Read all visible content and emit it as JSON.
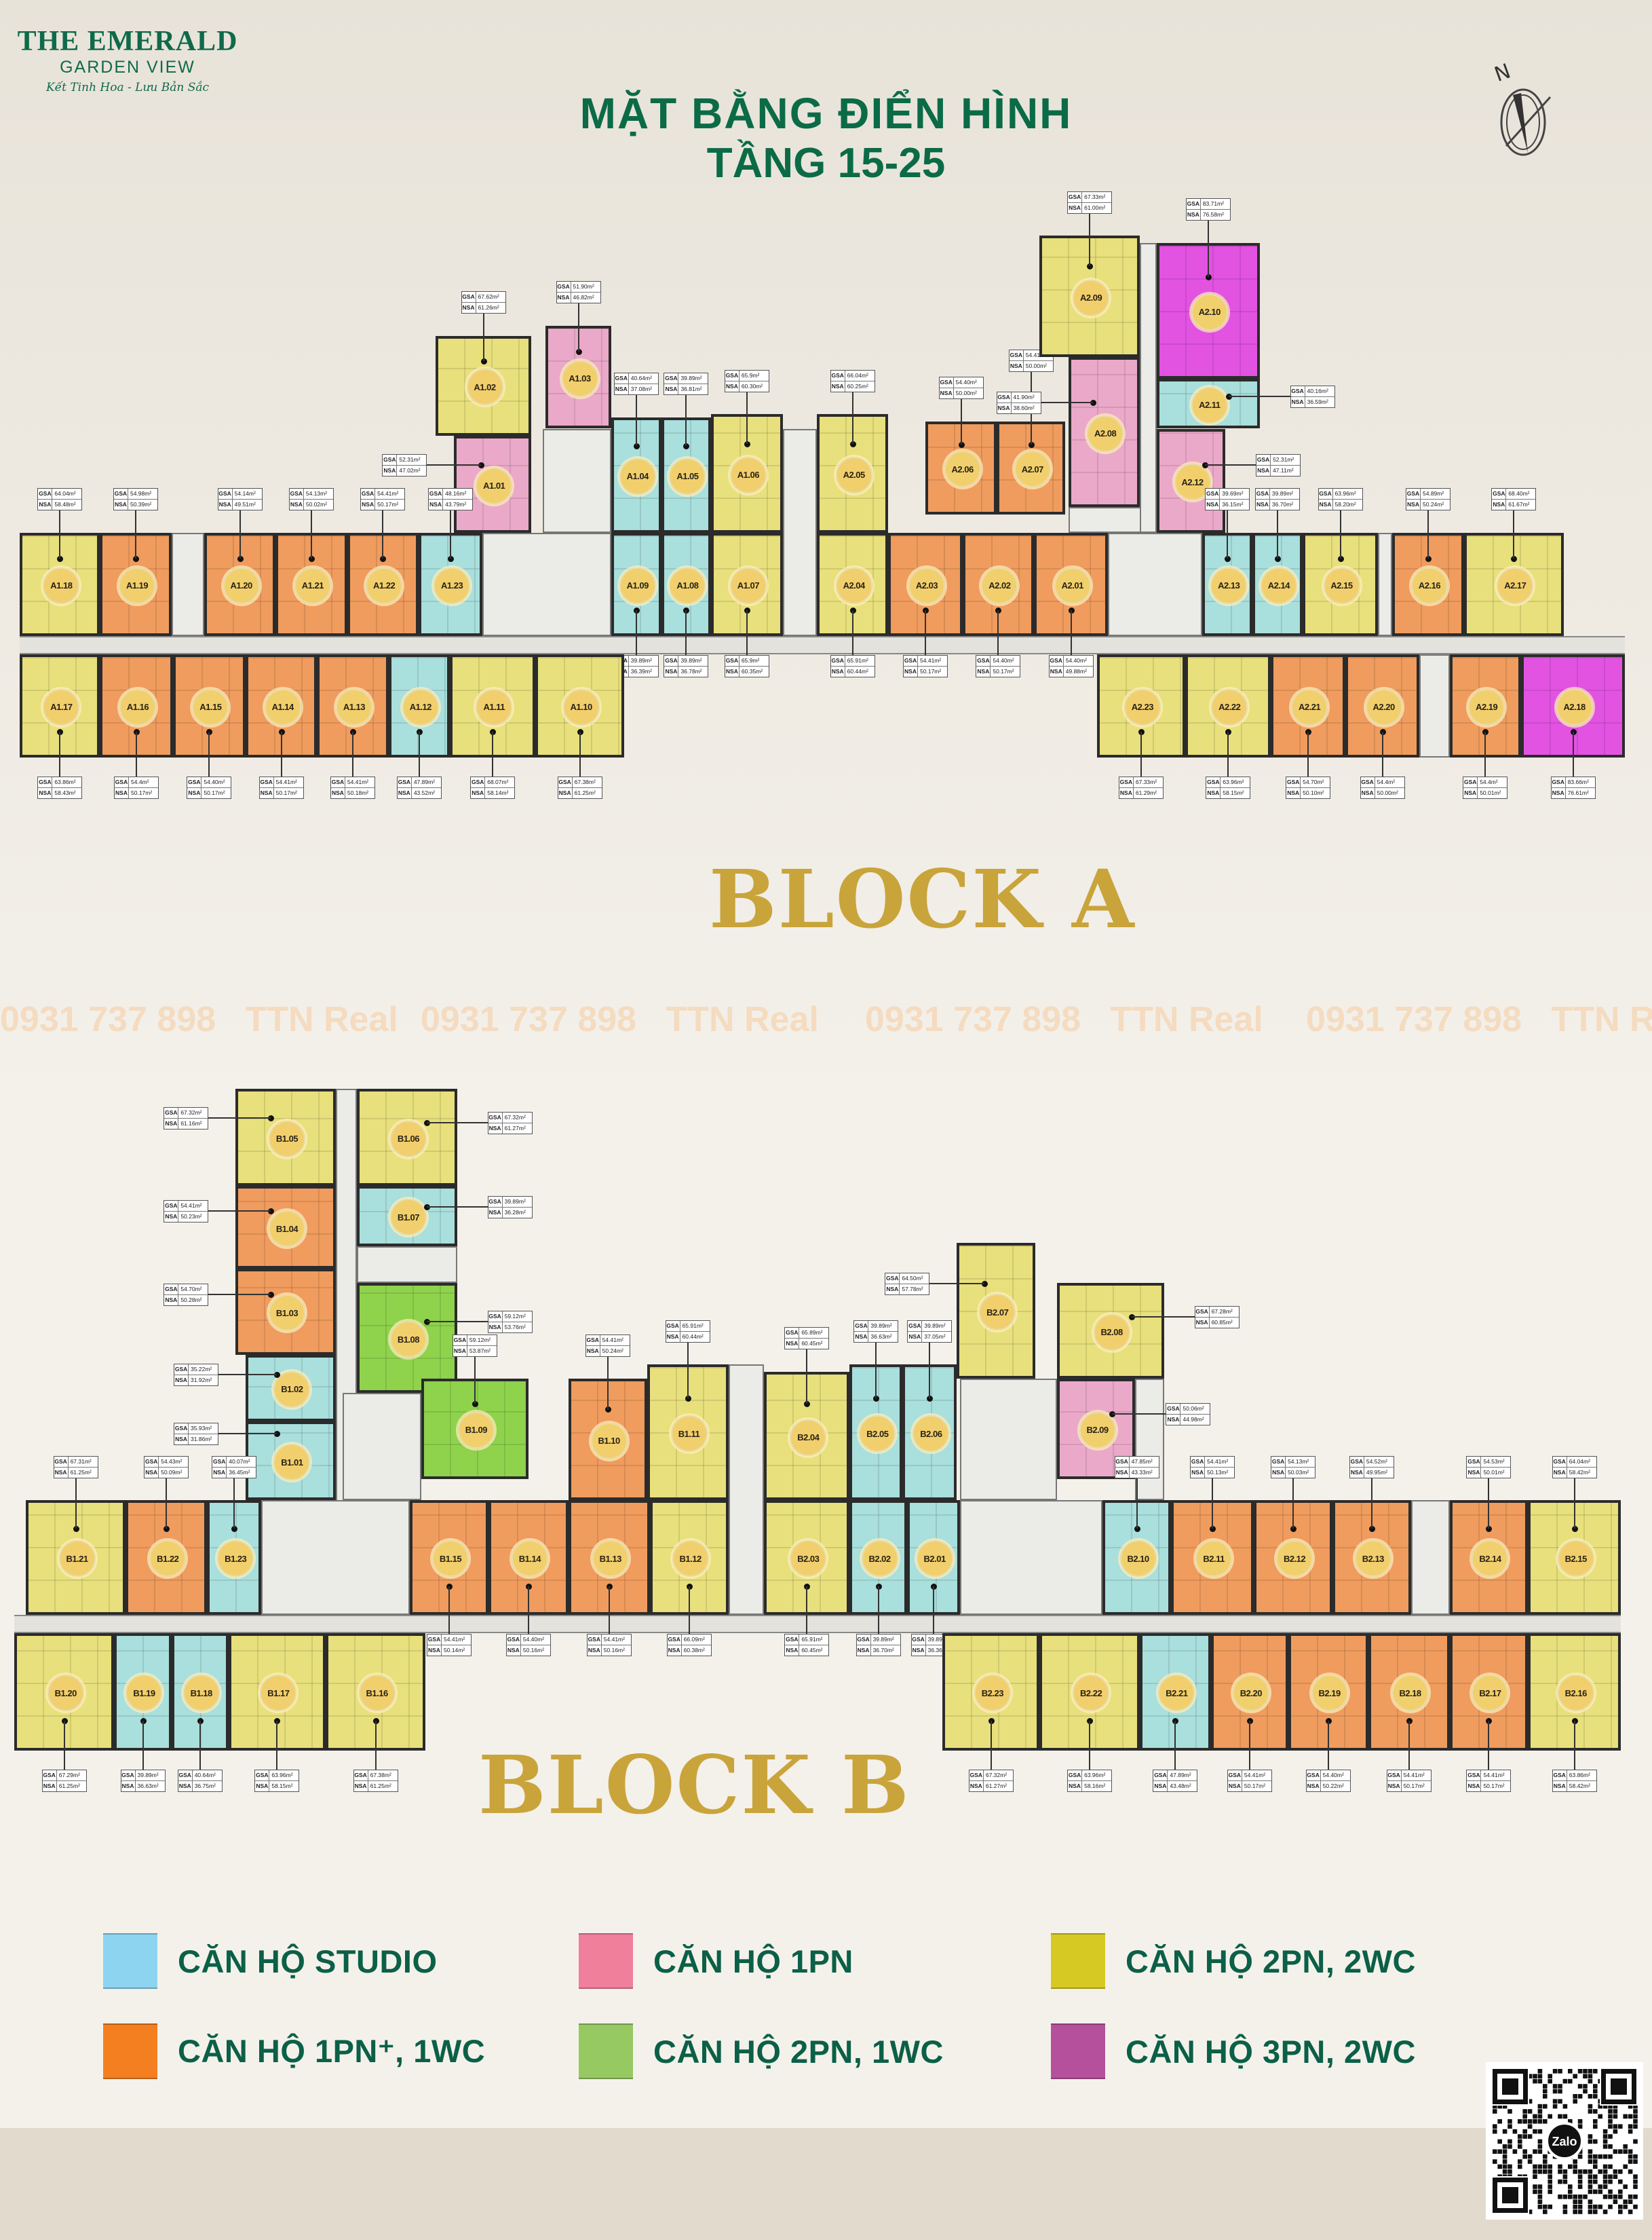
{
  "logo": {
    "line1": "THE EMERALD",
    "line2": "GARDEN VIEW",
    "tagline": "Kết Tinh Hoa - Lưu Bản Sắc"
  },
  "header": {
    "title": "MẶT BẰNG  ĐIỂN HÌNH",
    "subtitle": "TẦNG 15-25"
  },
  "compass": {
    "label": "N",
    "icon": "north-arrow-compass-icon"
  },
  "area_labels": {
    "gross": "GSA",
    "net": "NSA",
    "unit": "m²"
  },
  "watermark": {
    "phone": "0931 737 898",
    "name": "TTN Real"
  },
  "types": {
    "studio": {
      "label": "CĂN HỘ STUDIO",
      "color": "#8dd4f0",
      "plan_color": "#a9dfdc"
    },
    "1pn": {
      "label": "CĂN HỘ 1PN",
      "color": "#f07f9c",
      "plan_color": "#eba9c9"
    },
    "2pn2wc": {
      "label": "CĂN HỘ 2PN, 2WC",
      "color": "#d6c924",
      "plan_color": "#e8e07c"
    },
    "1pnplus": {
      "label": "CĂN HỘ 1PN⁺, 1WC",
      "color": "#f47f20",
      "plan_color": "#ef9c5e"
    },
    "2pn1wc": {
      "label": "CĂN HỘ 2PN, 1WC",
      "color": "#97c963",
      "plan_color": "#8fd24c"
    },
    "3pn2wc": {
      "label": "CĂN HỘ 3PN, 2WC",
      "color": "#b5519c",
      "plan_color": "#e253e2"
    }
  },
  "legend_order": [
    "studio",
    "1pn",
    "2pn2wc",
    "1pnplus",
    "2pn1wc",
    "3pn2wc"
  ],
  "blocks": [
    {
      "name": "BLOCK A",
      "units": [
        {
          "id": "A1.01",
          "type": "1pn",
          "gsa": "52.31",
          "nsa": "47.02"
        },
        {
          "id": "A1.02",
          "type": "2pn2wc",
          "gsa": "67.62",
          "nsa": "61.26"
        },
        {
          "id": "A1.03",
          "type": "1pn",
          "gsa": "51.90",
          "nsa": "46.82"
        },
        {
          "id": "A1.04",
          "type": "studio",
          "gsa": "40.64",
          "nsa": "37.08"
        },
        {
          "id": "A1.05",
          "type": "studio",
          "gsa": "39.89",
          "nsa": "36.81"
        },
        {
          "id": "A1.06",
          "type": "2pn2wc",
          "gsa": "65.9",
          "nsa": "60.30"
        },
        {
          "id": "A1.07",
          "type": "2pn2wc",
          "gsa": "65.9",
          "nsa": "60.35"
        },
        {
          "id": "A1.08",
          "type": "studio",
          "gsa": "39.89",
          "nsa": "36.78"
        },
        {
          "id": "A1.09",
          "type": "studio",
          "gsa": "39.89",
          "nsa": "36.39"
        },
        {
          "id": "A1.10",
          "type": "2pn2wc",
          "gsa": "67.38",
          "nsa": "61.25"
        },
        {
          "id": "A1.11",
          "type": "2pn2wc",
          "gsa": "68.07",
          "nsa": "58.14"
        },
        {
          "id": "A1.12",
          "type": "studio",
          "gsa": "47.89",
          "nsa": "43.52"
        },
        {
          "id": "A1.13",
          "type": "1pnplus",
          "gsa": "54.41",
          "nsa": "50.18"
        },
        {
          "id": "A1.14",
          "type": "1pnplus",
          "gsa": "54.41",
          "nsa": "50.17"
        },
        {
          "id": "A1.15",
          "type": "1pnplus",
          "gsa": "54.40",
          "nsa": "50.17"
        },
        {
          "id": "A1.16",
          "type": "1pnplus",
          "gsa": "54.4",
          "nsa": "50.17"
        },
        {
          "id": "A1.17",
          "type": "2pn2wc",
          "gsa": "63.86",
          "nsa": "58.43"
        },
        {
          "id": "A1.18",
          "type": "2pn2wc",
          "gsa": "64.04",
          "nsa": "58.48"
        },
        {
          "id": "A1.19",
          "type": "1pnplus",
          "gsa": "54.98",
          "nsa": "50.39"
        },
        {
          "id": "A1.20",
          "type": "1pnplus",
          "gsa": "54.14",
          "nsa": "49.51"
        },
        {
          "id": "A1.21",
          "type": "1pnplus",
          "gsa": "54.13",
          "nsa": "50.02"
        },
        {
          "id": "A1.22",
          "type": "1pnplus",
          "gsa": "54.41",
          "nsa": "50.17"
        },
        {
          "id": "A1.23",
          "type": "studio",
          "gsa": "48.16",
          "nsa": "43.79"
        },
        {
          "id": "A2.01",
          "type": "1pnplus",
          "gsa": "54.40",
          "nsa": "49.88"
        },
        {
          "id": "A2.02",
          "type": "1pnplus",
          "gsa": "54.40",
          "nsa": "50.17"
        },
        {
          "id": "A2.03",
          "type": "1pnplus",
          "gsa": "54.41",
          "nsa": "50.17"
        },
        {
          "id": "A2.04",
          "type": "2pn2wc",
          "gsa": "65.91",
          "nsa": "60.44"
        },
        {
          "id": "A2.05",
          "type": "2pn2wc",
          "gsa": "66.04",
          "nsa": "60.25"
        },
        {
          "id": "A2.06",
          "type": "1pnplus",
          "gsa": "54.40",
          "nsa": "50.00"
        },
        {
          "id": "A2.07",
          "type": "1pnplus",
          "gsa": "54.41",
          "nsa": "50.00"
        },
        {
          "id": "A2.08",
          "type": "1pn",
          "gsa": "41.90",
          "nsa": "38.60"
        },
        {
          "id": "A2.09",
          "type": "2pn2wc",
          "gsa": "67.33",
          "nsa": "61.00"
        },
        {
          "id": "A2.10",
          "type": "3pn2wc",
          "gsa": "83.71",
          "nsa": "76.58"
        },
        {
          "id": "A2.11",
          "type": "studio",
          "gsa": "40.16",
          "nsa": "36.59"
        },
        {
          "id": "A2.12",
          "type": "1pn",
          "gsa": "52.31",
          "nsa": "47.11"
        },
        {
          "id": "A2.13",
          "type": "studio",
          "gsa": "39.69",
          "nsa": "36.15"
        },
        {
          "id": "A2.14",
          "type": "studio",
          "gsa": "39.89",
          "nsa": "36.70"
        },
        {
          "id": "A2.15",
          "type": "2pn2wc",
          "gsa": "63.96",
          "nsa": "58.20"
        },
        {
          "id": "A2.16",
          "type": "1pnplus",
          "gsa": "54.89",
          "nsa": "50.24"
        },
        {
          "id": "A2.17",
          "type": "2pn2wc",
          "gsa": "68.40",
          "nsa": "61.67"
        },
        {
          "id": "A2.18",
          "type": "3pn2wc",
          "gsa": "83.66",
          "nsa": "76.61"
        },
        {
          "id": "A2.19",
          "type": "1pnplus",
          "gsa": "54.4",
          "nsa": "50.01"
        },
        {
          "id": "A2.20",
          "type": "1pnplus",
          "gsa": "54.4",
          "nsa": "50.00"
        },
        {
          "id": "A2.21",
          "type": "1pnplus",
          "gsa": "54.70",
          "nsa": "50.10"
        },
        {
          "id": "A2.22",
          "type": "2pn2wc",
          "gsa": "63.96",
          "nsa": "58.15"
        },
        {
          "id": "A2.23",
          "type": "2pn2wc",
          "gsa": "67.33",
          "nsa": "61.29"
        }
      ]
    },
    {
      "name": "BLOCK B",
      "units": [
        {
          "id": "B1.01",
          "type": "studio",
          "gsa": "35.93",
          "nsa": "31.86"
        },
        {
          "id": "B1.02",
          "type": "studio",
          "gsa": "35.22",
          "nsa": "31.92"
        },
        {
          "id": "B1.03",
          "type": "1pnplus",
          "gsa": "54.70",
          "nsa": "50.28"
        },
        {
          "id": "B1.04",
          "type": "1pnplus",
          "gsa": "54.41",
          "nsa": "50.23"
        },
        {
          "id": "B1.05",
          "type": "2pn2wc",
          "gsa": "67.32",
          "nsa": "61.16"
        },
        {
          "id": "B1.06",
          "type": "2pn2wc",
          "gsa": "67.32",
          "nsa": "61.27"
        },
        {
          "id": "B1.07",
          "type": "studio",
          "gsa": "39.89",
          "nsa": "36.28"
        },
        {
          "id": "B1.08",
          "type": "2pn1wc",
          "gsa": "59.12",
          "nsa": "53.76"
        },
        {
          "id": "B1.09",
          "type": "2pn1wc",
          "gsa": "59.12",
          "nsa": "53.87"
        },
        {
          "id": "B1.10",
          "type": "1pnplus",
          "gsa": "54.41",
          "nsa": "50.24"
        },
        {
          "id": "B1.11",
          "type": "2pn2wc",
          "gsa": "65.91",
          "nsa": "60.44"
        },
        {
          "id": "B1.12",
          "type": "2pn2wc",
          "gsa": "66.09",
          "nsa": "60.38"
        },
        {
          "id": "B1.13",
          "type": "1pnplus",
          "gsa": "54.41",
          "nsa": "50.16"
        },
        {
          "id": "B1.14",
          "type": "1pnplus",
          "gsa": "54.40",
          "nsa": "50.16"
        },
        {
          "id": "B1.15",
          "type": "1pnplus",
          "gsa": "54.41",
          "nsa": "50.14"
        },
        {
          "id": "B1.16",
          "type": "2pn2wc",
          "gsa": "67.38",
          "nsa": "61.25"
        },
        {
          "id": "B1.17",
          "type": "2pn2wc",
          "gsa": "63.96",
          "nsa": "58.15"
        },
        {
          "id": "B1.18",
          "type": "studio",
          "gsa": "40.64",
          "nsa": "36.75"
        },
        {
          "id": "B1.19",
          "type": "studio",
          "gsa": "39.89",
          "nsa": "36.63"
        },
        {
          "id": "B1.20",
          "type": "2pn2wc",
          "gsa": "67.29",
          "nsa": "61.25"
        },
        {
          "id": "B1.21",
          "type": "2pn2wc",
          "gsa": "67.31",
          "nsa": "61.25"
        },
        {
          "id": "B1.22",
          "type": "1pnplus",
          "gsa": "54.43",
          "nsa": "50.09"
        },
        {
          "id": "B1.23",
          "type": "studio",
          "gsa": "40.07",
          "nsa": "36.45"
        },
        {
          "id": "B2.01",
          "type": "studio",
          "gsa": "39.89",
          "nsa": "36.36"
        },
        {
          "id": "B2.02",
          "type": "studio",
          "gsa": "39.89",
          "nsa": "36.70"
        },
        {
          "id": "B2.03",
          "type": "2pn2wc",
          "gsa": "65.91",
          "nsa": "60.45"
        },
        {
          "id": "B2.04",
          "type": "2pn2wc",
          "gsa": "65.89",
          "nsa": "60.45"
        },
        {
          "id": "B2.05",
          "type": "studio",
          "gsa": "39.89",
          "nsa": "36.63"
        },
        {
          "id": "B2.06",
          "type": "studio",
          "gsa": "39.89",
          "nsa": "37.05"
        },
        {
          "id": "B2.07",
          "type": "2pn2wc",
          "gsa": "64.50",
          "nsa": "57.78"
        },
        {
          "id": "B2.08",
          "type": "2pn2wc",
          "gsa": "67.28",
          "nsa": "60.85"
        },
        {
          "id": "B2.09",
          "type": "1pn",
          "gsa": "50.06",
          "nsa": "44.98"
        },
        {
          "id": "B2.10",
          "type": "studio",
          "gsa": "47.85",
          "nsa": "43.33"
        },
        {
          "id": "B2.11",
          "type": "1pnplus",
          "gsa": "54.41",
          "nsa": "50.13"
        },
        {
          "id": "B2.12",
          "type": "1pnplus",
          "gsa": "54.13",
          "nsa": "50.03"
        },
        {
          "id": "B2.13",
          "type": "1pnplus",
          "gsa": "54.52",
          "nsa": "49.95"
        },
        {
          "id": "B2.14",
          "type": "1pnplus",
          "gsa": "54.53",
          "nsa": "50.01"
        },
        {
          "id": "B2.15",
          "type": "2pn2wc",
          "gsa": "64.04",
          "nsa": "58.42"
        },
        {
          "id": "B2.16",
          "type": "2pn2wc",
          "gsa": "63.86",
          "nsa": "58.42"
        },
        {
          "id": "B2.17",
          "type": "1pnplus",
          "gsa": "54.41",
          "nsa": "50.17"
        },
        {
          "id": "B2.18",
          "type": "1pnplus",
          "gsa": "54.41",
          "nsa": "50.17"
        },
        {
          "id": "B2.19",
          "type": "1pnplus",
          "gsa": "54.40",
          "nsa": "50.22"
        },
        {
          "id": "B2.20",
          "type": "1pnplus",
          "gsa": "54.41",
          "nsa": "50.17"
        },
        {
          "id": "B2.21",
          "type": "studio",
          "gsa": "47.89",
          "nsa": "43.48"
        },
        {
          "id": "B2.22",
          "type": "2pn2wc",
          "gsa": "63.96",
          "nsa": "58.16"
        },
        {
          "id": "B2.23",
          "type": "2pn2wc",
          "gsa": "67.32",
          "nsa": "61.27"
        }
      ]
    }
  ],
  "qr": {
    "icon": "zalo-qr-code-icon",
    "badge": "Zalo"
  }
}
